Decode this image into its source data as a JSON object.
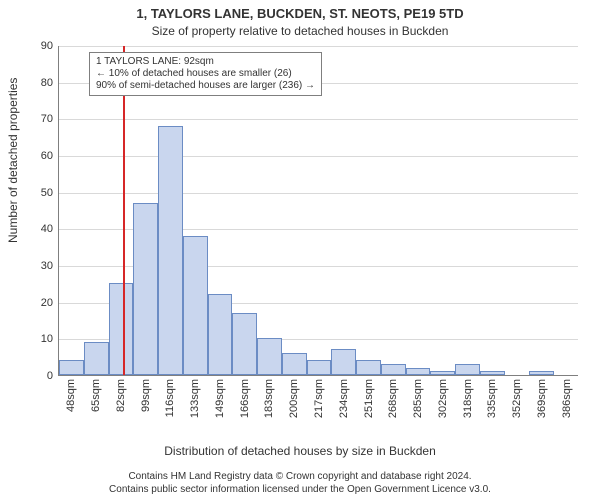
{
  "title1": "1, TAYLORS LANE, BUCKDEN, ST. NEOTS, PE19 5TD",
  "title2": "Size of property relative to detached houses in Buckden",
  "ylabel": "Number of detached properties",
  "xlabel": "Distribution of detached houses by size in Buckden",
  "footer_line1": "Contains HM Land Registry data © Crown copyright and database right 2024.",
  "footer_line2": "Contains public sector information licensed under the Open Government Licence v3.0.",
  "annotation": {
    "line1": "1 TAYLORS LANE: 92sqm",
    "line2": "← 10% of detached houses are smaller (26)",
    "line3": "90% of semi-detached houses are larger (236) →",
    "border_color": "#7f7f7f",
    "fontsize": 10
  },
  "chart": {
    "type": "histogram",
    "ylim": [
      0,
      90
    ],
    "ytick_step": 10,
    "yticks": [
      0,
      10,
      20,
      30,
      40,
      50,
      60,
      70,
      80,
      90
    ],
    "xticklabels": [
      "48sqm",
      "65sqm",
      "82sqm",
      "99sqm",
      "116sqm",
      "133sqm",
      "149sqm",
      "166sqm",
      "183sqm",
      "200sqm",
      "217sqm",
      "234sqm",
      "251sqm",
      "268sqm",
      "285sqm",
      "302sqm",
      "318sqm",
      "335sqm",
      "352sqm",
      "369sqm",
      "386sqm"
    ],
    "values": [
      4,
      9,
      25,
      47,
      68,
      38,
      22,
      17,
      10,
      6,
      4,
      7,
      4,
      3,
      2,
      1,
      3,
      1,
      0,
      1,
      0
    ],
    "bar_fill": "#c9d6ee",
    "bar_stroke": "#6b8cc4",
    "bar_width_rel": 1.0,
    "grid_color": "#d9d9d9",
    "axis_color": "#7f7f7f",
    "background_color": "#ffffff",
    "tick_fontsize": 11,
    "title_fontsize": 13,
    "subtitle_fontsize": 12,
    "label_fontsize": 12,
    "footer_fontsize": 10,
    "marker_line": {
      "x_index": 2.6,
      "color": "#d62728",
      "width": 2
    }
  }
}
